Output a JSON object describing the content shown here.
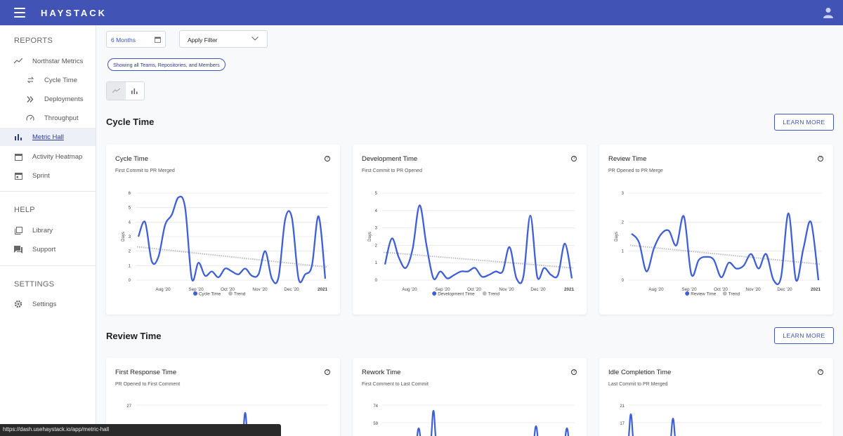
{
  "app": {
    "logo": "HAYSTACK"
  },
  "sidebar": {
    "reports_title": "REPORTS",
    "help_title": "HELP",
    "settings_title": "SETTINGS",
    "reports": [
      {
        "label": "Northstar Metrics"
      },
      {
        "label": "Cycle Time"
      },
      {
        "label": "Deployments"
      },
      {
        "label": "Throughput"
      },
      {
        "label": "Metric Hall"
      },
      {
        "label": "Activity Heatmap"
      },
      {
        "label": "Sprint"
      }
    ],
    "help": [
      {
        "label": "Library"
      },
      {
        "label": "Support"
      }
    ],
    "settings": [
      {
        "label": "Settings"
      }
    ]
  },
  "toolbar": {
    "date_range": "6 Months",
    "filter_label": "Apply Filter",
    "scope_chip": "Showing all Teams, Repositories, and Members"
  },
  "sections": [
    {
      "title": "Cycle Time",
      "learn_more": "LEARN MORE"
    },
    {
      "title": "Review Time",
      "learn_more": "LEARN MORE"
    }
  ],
  "cards": [
    {
      "title": "Cycle Time",
      "subtitle": "First Commit to PR Merged",
      "legend": [
        "Cycle Time",
        "Trend"
      ]
    },
    {
      "title": "Development Time",
      "subtitle": "First Commit to PR Opened",
      "legend": [
        "Development Time",
        "Trend"
      ]
    },
    {
      "title": "Review Time",
      "subtitle": "PR Opened to PR Merge",
      "legend": [
        "Review Time",
        "Trend"
      ]
    },
    {
      "title": "First Response Time",
      "subtitle": "PR Opened to First Comment"
    },
    {
      "title": "Rework Time",
      "subtitle": "First Comment to Last Commit"
    },
    {
      "title": "Idle Completion Time",
      "subtitle": "Last Commit to PR Merged"
    }
  ],
  "status_url": "https://dash.usehaystack.io/app/metric-hall",
  "colors": {
    "brand": "#4153b5",
    "series": "#3f5fd8",
    "trend": "#bbbbbb"
  },
  "chart_data": [
    {
      "type": "line",
      "ylabel": "Days",
      "xticks": [
        "Aug '20",
        "Sep '20",
        "Oct '20",
        "Nov '20",
        "Dec '20",
        "2021"
      ],
      "yticks": [
        0,
        1,
        2,
        3,
        4,
        5,
        6
      ],
      "ylim": [
        0,
        6
      ],
      "series": [
        {
          "name": "Cycle Time",
          "values": [
            3.0,
            4.0,
            1.3,
            1.6,
            3.8,
            4.5,
            5.7,
            5.0,
            0.1,
            1.2,
            0.3,
            0.6,
            0.2,
            0.8,
            0.6,
            0.4,
            0.8,
            0.3,
            0.4,
            2.0,
            0.1,
            0.2,
            4.2,
            4.3,
            0.1,
            0.4,
            1.0,
            4.4,
            0.1
          ]
        },
        {
          "name": "Trend",
          "values": [
            2.3,
            0.9
          ]
        }
      ],
      "legend": "bottom",
      "grid": true
    },
    {
      "type": "line",
      "ylabel": "Days",
      "xticks": [
        "Aug '20",
        "Sep '20",
        "Oct '20",
        "Nov '20",
        "Dec '20",
        "2021"
      ],
      "yticks": [
        0,
        1,
        2,
        3,
        4,
        5
      ],
      "ylim": [
        0,
        5
      ],
      "series": [
        {
          "name": "Development Time",
          "values": [
            0.9,
            2.4,
            1.3,
            0.7,
            1.8,
            4.3,
            2.0,
            0.1,
            0.5,
            0.1,
            0.3,
            0.5,
            0.5,
            0.7,
            0.2,
            0.3,
            0.5,
            0.5,
            1.9,
            0.1,
            0.2,
            3.7,
            0.2,
            0.7,
            0.3,
            0.3,
            2.1,
            0.1
          ]
        },
        {
          "name": "Trend",
          "values": [
            1.6,
            0.7
          ]
        }
      ],
      "legend": "bottom",
      "grid": true
    },
    {
      "type": "line",
      "ylabel": "Days",
      "xticks": [
        "Aug '20",
        "Sep '20",
        "Oct '20",
        "Nov '20",
        "Dec '20",
        "2021"
      ],
      "yticks": [
        0,
        1,
        2,
        3
      ],
      "ylim": [
        0,
        3
      ],
      "series": [
        {
          "name": "Review Time",
          "values": [
            1.6,
            1.3,
            0.3,
            1.1,
            1.6,
            1.7,
            1.2,
            2.2,
            0.2,
            0.7,
            0.8,
            0.7,
            0.1,
            0.6,
            0.4,
            0.5,
            0.9,
            0.4,
            0.9,
            0.0,
            0.1,
            2.3,
            0.0,
            1.1,
            2.0,
            0.0
          ]
        },
        {
          "name": "Trend",
          "values": [
            1.2,
            0.55
          ]
        }
      ],
      "legend": "bottom",
      "grid": true
    },
    {
      "type": "line",
      "yticks": [
        27
      ],
      "series": [
        {
          "name": "",
          "values": [
            0
          ]
        }
      ]
    },
    {
      "type": "line",
      "yticks": [
        74,
        59
      ],
      "series": [
        {
          "name": "",
          "values": [
            0
          ]
        }
      ]
    },
    {
      "type": "line",
      "yticks": [
        21,
        17
      ],
      "series": [
        {
          "name": "",
          "values": [
            0
          ]
        }
      ]
    }
  ]
}
